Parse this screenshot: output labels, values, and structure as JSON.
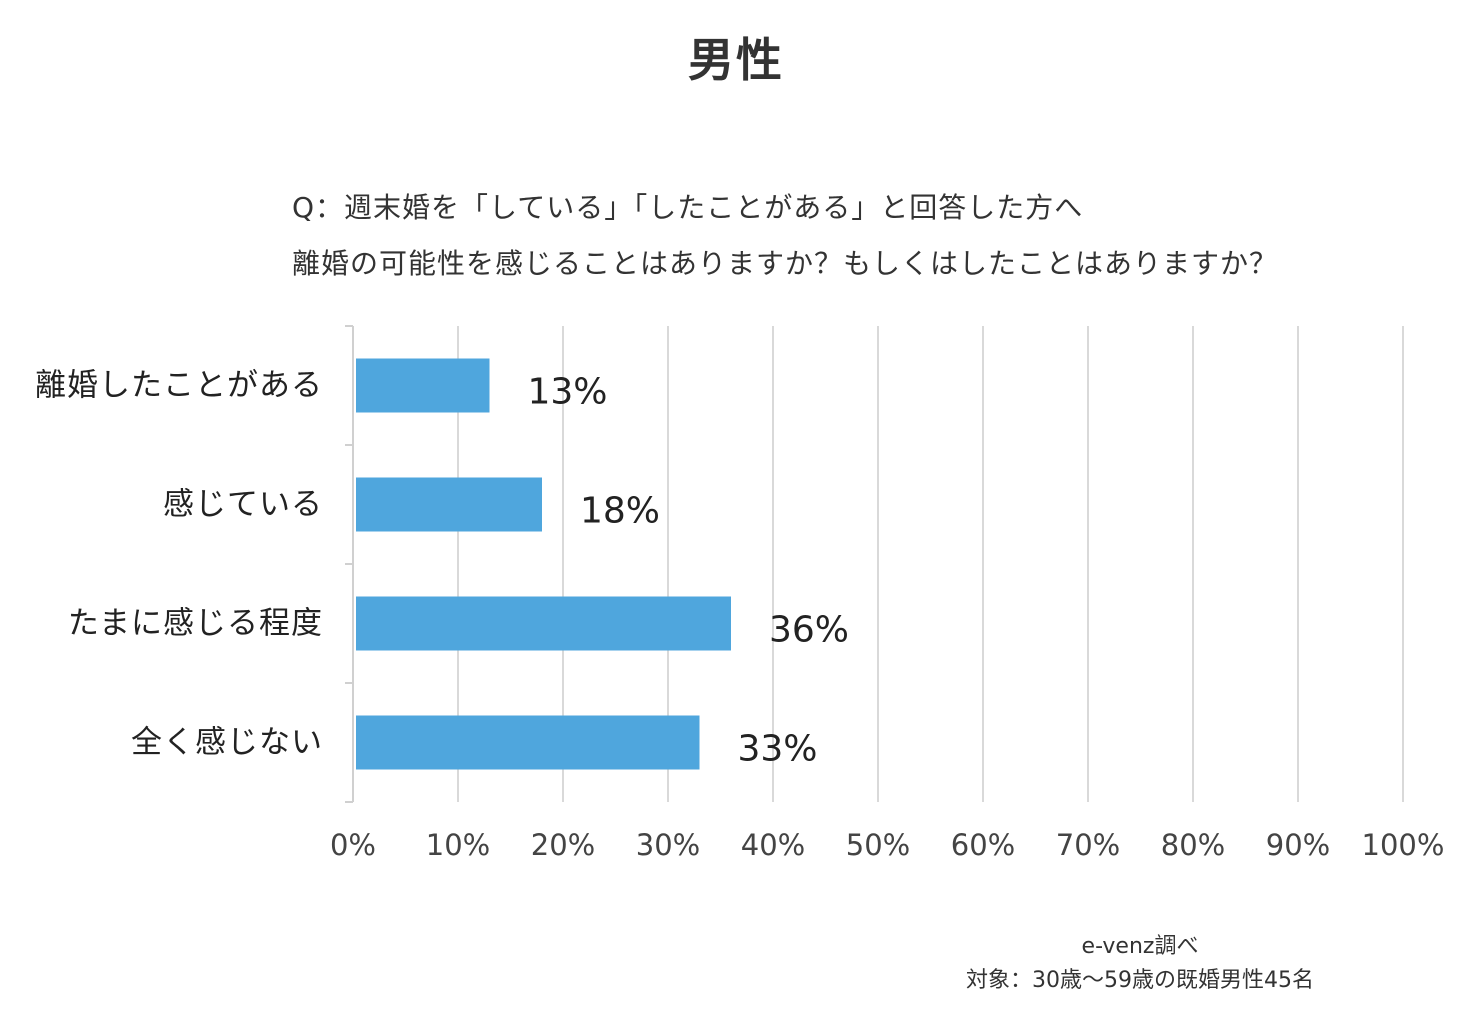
{
  "title": "男性",
  "question": {
    "line1": "Q：週末婚を「している」「したことがある」と回答した方へ",
    "line2": "離婚の可能性を感じることはありますか？もしくはしたことはありますか？"
  },
  "chart_data": {
    "type": "bar",
    "orientation": "horizontal",
    "categories": [
      "離婚したことがある",
      "感じている",
      "たまに感じる程度",
      "全く感じない"
    ],
    "values": [
      13,
      18,
      36,
      33
    ],
    "data_labels": [
      "13%",
      "18%",
      "36%",
      "33%"
    ],
    "xlim": [
      0,
      100
    ],
    "xticks": [
      "0%",
      "10%",
      "20%",
      "30%",
      "40%",
      "50%",
      "60%",
      "70%",
      "80%",
      "90%",
      "100%"
    ],
    "bar_color": "#4fa6dd",
    "grid": true,
    "legend": "none"
  },
  "footer": {
    "source": "e-venz調べ",
    "target": "対象：30歳～59歳の既婚男性45名"
  }
}
